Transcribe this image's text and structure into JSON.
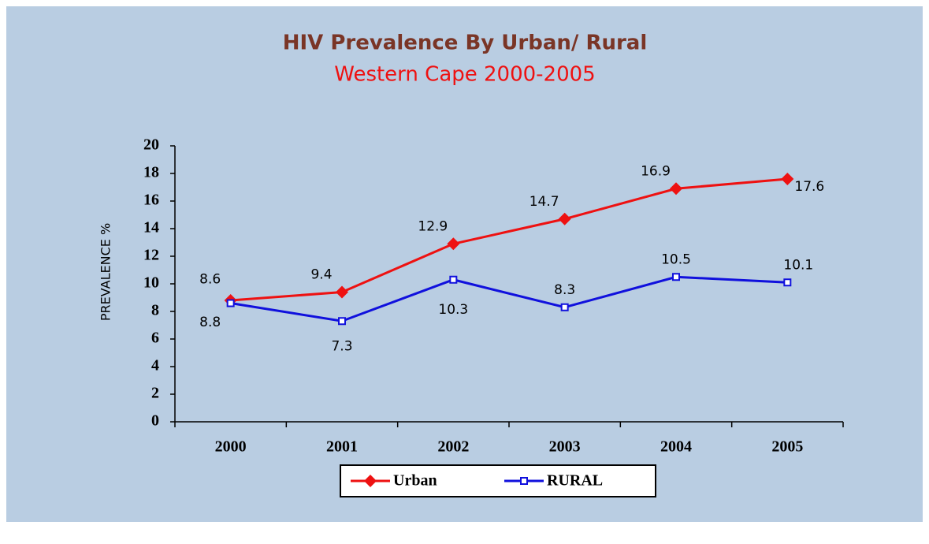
{
  "chart_data": {
    "type": "line",
    "title": "HIV Prevalence By Urban/ Rural",
    "subtitle": "Western Cape 2000-2005",
    "y_label": "PREVALENCE %",
    "categories": [
      "2000",
      "2001",
      "2002",
      "2003",
      "2004",
      "2005"
    ],
    "series": [
      {
        "name": "Urban",
        "color": "#ee1111",
        "marker": "diamond",
        "values": [
          8.8,
          9.4,
          12.9,
          14.7,
          16.9,
          17.6
        ]
      },
      {
        "name": "RURAL",
        "color": "#1010dd",
        "marker": "square",
        "values": [
          8.6,
          7.3,
          10.3,
          8.3,
          10.5,
          10.1
        ]
      }
    ],
    "ylim": [
      0,
      20
    ],
    "yticks": [
      0,
      2,
      4,
      6,
      8,
      10,
      12,
      14,
      16,
      18,
      20
    ],
    "grid": false,
    "legend": "bottom"
  }
}
